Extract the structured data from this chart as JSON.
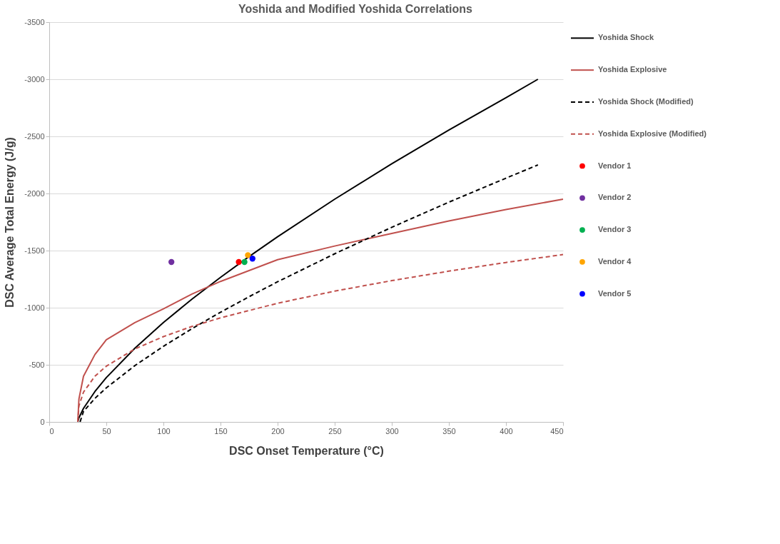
{
  "chart_data": {
    "type": "line",
    "title": "Yoshida and Modified Yoshida Correlations",
    "xlabel": "DSC Onset Temperature (°C)",
    "ylabel": "DSC Average Total Energy (J/g)",
    "xlim": [
      0,
      450
    ],
    "xticks": [
      0,
      50,
      100,
      150,
      200,
      250,
      300,
      350,
      400,
      450
    ],
    "ylim": [
      0,
      -3500
    ],
    "yticks": [
      0,
      -500,
      -1000,
      -1500,
      -2000,
      -2500,
      -3000,
      -3500
    ],
    "grid": "y",
    "legend": "right",
    "series": [
      {
        "name": "Yoshida Shock",
        "color": "#000000",
        "line_style": "solid",
        "x": [
          25,
          26,
          30,
          40,
          50,
          75,
          100,
          125,
          150,
          175,
          200,
          250,
          300,
          350,
          400,
          428
        ],
        "values": [
          0,
          -36,
          -119,
          -266,
          -388,
          -645,
          -870,
          -1075,
          -1266,
          -1448,
          -1621,
          -1950,
          -2260,
          -2556,
          -2839,
          -3000
        ]
      },
      {
        "name": "Yoshida Explosive",
        "color": "#c0504d",
        "line_style": "solid",
        "x": [
          25,
          26,
          30,
          40,
          50,
          75,
          100,
          125,
          150,
          200,
          250,
          300,
          350,
          400,
          450
        ],
        "values": [
          0,
          -200,
          -400,
          -590,
          -720,
          -870,
          -990,
          -1120,
          -1230,
          -1420,
          -1540,
          -1650,
          -1760,
          -1860,
          -1950
        ]
      },
      {
        "name": "Yoshida Shock (Modified)",
        "color": "#000000",
        "line_style": "dashed",
        "x": [
          27,
          30,
          40,
          50,
          75,
          100,
          125,
          150,
          175,
          200,
          250,
          300,
          350,
          400,
          428
        ],
        "values": [
          0,
          -92,
          -206,
          -298,
          -493,
          -662,
          -816,
          -960,
          -1096,
          -1227,
          -1472,
          -1704,
          -1924,
          -2134,
          -2250
        ]
      },
      {
        "name": "Yoshida Explosive (Modified)",
        "color": "#c0504d",
        "line_style": "dashed",
        "x": [
          25,
          26,
          30,
          40,
          50,
          75,
          100,
          125,
          150,
          200,
          250,
          300,
          350,
          400,
          450
        ],
        "values": [
          0,
          -140,
          -261,
          -400,
          -488,
          -639,
          -747,
          -836,
          -911,
          -1039,
          -1145,
          -1237,
          -1320,
          -1396,
          -1465
        ]
      },
      {
        "name": "Vendor 1",
        "type": "scatter",
        "color": "#ff0000",
        "x": [
          166
        ],
        "values": [
          -1400
        ]
      },
      {
        "name": "Vendor 2",
        "type": "scatter",
        "color": "#7030a0",
        "x": [
          107
        ],
        "values": [
          -1400
        ]
      },
      {
        "name": "Vendor 3",
        "type": "scatter",
        "color": "#00b050",
        "x": [
          171
        ],
        "values": [
          -1400
        ]
      },
      {
        "name": "Vendor 4",
        "type": "scatter",
        "color": "#ffa500",
        "x": [
          174
        ],
        "values": [
          -1460
        ]
      },
      {
        "name": "Vendor 5",
        "type": "scatter",
        "color": "#0000ff",
        "x": [
          178
        ],
        "values": [
          -1430
        ]
      }
    ]
  }
}
